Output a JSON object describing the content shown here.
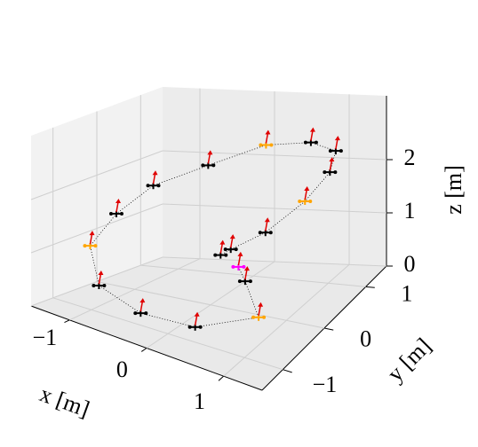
{
  "chart_data": {
    "type": "scatter3d",
    "x_label": "x [m]",
    "y_label": "y [m]",
    "z_label": "z [m]",
    "xlim": [
      -1.5,
      1.5
    ],
    "ylim": [
      -1.5,
      1.5
    ],
    "zlim": [
      0,
      3.2
    ],
    "xticks": [
      {
        "value": -1,
        "label": "−1"
      },
      0,
      1
    ],
    "yticks": [
      {
        "value": -1,
        "label": "−1"
      },
      0,
      1
    ],
    "zticks": [
      0,
      1,
      2
    ],
    "grid": true,
    "line_color": "#000000",
    "heading_color": "#e00000",
    "x": [
      0.2,
      0.4,
      0.8,
      0.3,
      -0.3,
      -0.9,
      -1.3,
      -1.3,
      -1.1,
      -0.6,
      0.0,
      0.6,
      1.1,
      1.3,
      1.3,
      1.0,
      0.6,
      0.3
    ],
    "y": [
      0.3,
      0.1,
      -0.3,
      -0.9,
      -1.1,
      -1.0,
      -0.5,
      0.1,
      0.6,
      1.0,
      1.3,
      1.3,
      1.0,
      0.5,
      -0.1,
      -0.5,
      -0.6,
      -0.3
    ],
    "z": [
      0.6,
      0.5,
      0.2,
      0.2,
      0.3,
      0.5,
      0.9,
      1.3,
      1.7,
      2.0,
      2.3,
      2.4,
      2.5,
      2.5,
      2.4,
      2.0,
      1.6,
      1.2
    ],
    "colors": [
      "#ff00ff",
      "#000000",
      "#ffa500",
      "#000000",
      "#000000",
      "#000000",
      "#ffa500",
      "#000000",
      "#000000",
      "#000000",
      "#ffa500",
      "#000000",
      "#000000",
      "#000000",
      "#ffa500",
      "#000000",
      "#000000",
      "#000000"
    ]
  }
}
